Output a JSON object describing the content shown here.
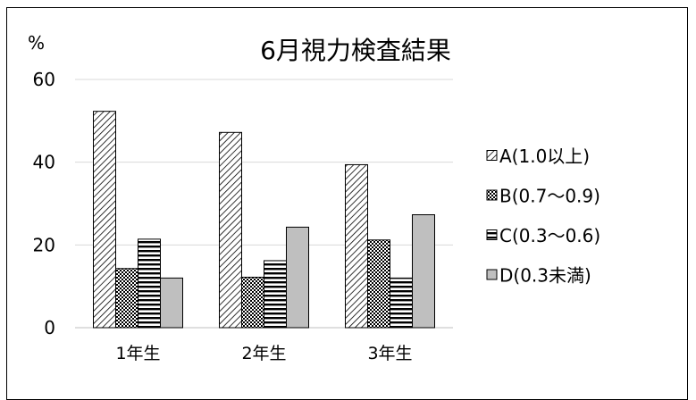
{
  "chart_data": {
    "type": "bar",
    "title": "6月視力検査結果",
    "ylabel": "%",
    "xlabel": "",
    "categories": [
      "1年生",
      "2年生",
      "3年生"
    ],
    "ylim": [
      0,
      60
    ],
    "yticks": [
      0,
      20,
      40,
      60
    ],
    "grid": true,
    "legend_position": "right",
    "series": [
      {
        "name": "A(1.0以上)",
        "values": [
          52.3,
          47.2,
          39.4
        ],
        "pattern": "diagonal-hatch"
      },
      {
        "name": "B(0.7～0.9)",
        "values": [
          14.3,
          12.2,
          21.2
        ],
        "pattern": "checker"
      },
      {
        "name": "C(0.3～0.6)",
        "values": [
          21.4,
          16.2,
          12.0
        ],
        "pattern": "horizontal-stripes"
      },
      {
        "name": "D(0.3未満)",
        "values": [
          12.0,
          24.3,
          27.3
        ],
        "pattern": "solid-gray"
      }
    ]
  },
  "colors": {
    "grid": "#d9d9d9",
    "solid_gray": "#bfbfbf",
    "stroke": "#000000"
  }
}
